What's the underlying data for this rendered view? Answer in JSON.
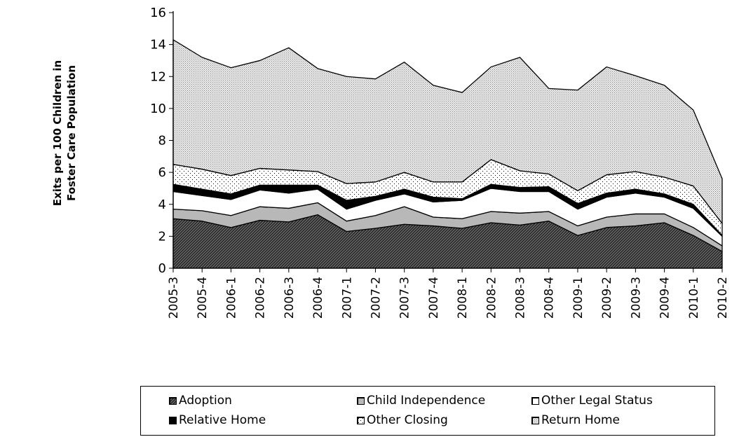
{
  "chart_data": {
    "type": "area",
    "stacked": true,
    "ylabel_lines": [
      "Exits per 100 Children in",
      "Foster Care Population"
    ],
    "xlabel": "",
    "ylim": [
      0,
      16
    ],
    "yticks": [
      0,
      2,
      4,
      6,
      8,
      10,
      12,
      14,
      16
    ],
    "grid": false,
    "legend_position": "bottom",
    "categories": [
      "2005-3",
      "2005-4",
      "2006-1",
      "2006-2",
      "2006-3",
      "2006-4",
      "2007-1",
      "2007-2",
      "2007-3",
      "2007-4",
      "2008-1",
      "2008-2",
      "2008-3",
      "2008-4",
      "2009-1",
      "2009-2",
      "2009-3",
      "2009-4",
      "2010-1",
      "2010-2"
    ],
    "series": [
      {
        "name": "Adoption",
        "pattern": "diagonal",
        "values": [
          3.1,
          2.95,
          2.55,
          3.0,
          2.9,
          3.35,
          2.3,
          2.5,
          2.75,
          2.65,
          2.5,
          2.85,
          2.7,
          2.95,
          2.05,
          2.55,
          2.65,
          2.85,
          2.05,
          1.05
        ]
      },
      {
        "name": "Child Independence",
        "pattern": "gray",
        "values": [
          0.6,
          0.65,
          0.75,
          0.85,
          0.85,
          0.75,
          0.65,
          0.8,
          1.1,
          0.55,
          0.6,
          0.7,
          0.75,
          0.6,
          0.6,
          0.65,
          0.75,
          0.55,
          0.5,
          0.35
        ]
      },
      {
        "name": "Other Legal Status",
        "pattern": "white",
        "values": [
          1.1,
          0.95,
          1.0,
          1.05,
          0.95,
          0.85,
          0.75,
          0.95,
          0.8,
          0.95,
          1.15,
          1.45,
          1.35,
          1.25,
          1.05,
          1.25,
          1.3,
          1.05,
          1.2,
          0.6
        ]
      },
      {
        "name": "Relative Home",
        "pattern": "black",
        "values": [
          0.45,
          0.4,
          0.35,
          0.3,
          0.5,
          0.25,
          0.55,
          0.25,
          0.3,
          0.3,
          0.1,
          0.25,
          0.25,
          0.3,
          0.35,
          0.25,
          0.25,
          0.2,
          0.25,
          0.05
        ]
      },
      {
        "name": "Other Closing",
        "pattern": "dots",
        "values": [
          1.25,
          1.25,
          1.15,
          1.05,
          0.95,
          0.85,
          1.05,
          0.9,
          1.05,
          0.95,
          1.05,
          1.55,
          1.05,
          0.8,
          0.8,
          1.15,
          1.1,
          1.05,
          1.15,
          0.75
        ]
      },
      {
        "name": "Return Home",
        "pattern": "fine-dots",
        "values": [
          7.8,
          7.0,
          6.75,
          6.75,
          7.65,
          6.45,
          6.7,
          6.45,
          6.9,
          6.05,
          5.6,
          5.8,
          7.1,
          5.35,
          6.3,
          6.75,
          6.0,
          5.75,
          4.75,
          2.8
        ]
      }
    ]
  }
}
